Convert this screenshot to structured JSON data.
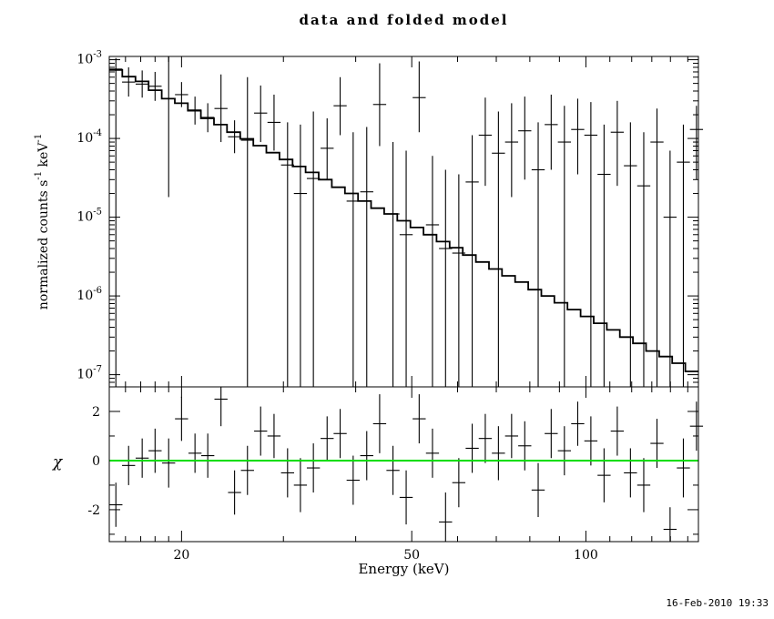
{
  "window": {
    "title": "data and folded model",
    "timestamp": "16-Feb-2010 19:33"
  },
  "chart_data": {
    "type": "line",
    "title": "data and folded model",
    "xlabel": "Energy (keV)",
    "ylabel_top": "normalized counts s^-1 keV^-1",
    "ylabel_bottom": "χ",
    "x_scale": "log",
    "y_scale_top": "log",
    "y_scale_bottom": "linear",
    "grid": false,
    "legend": false,
    "xlim": [
      15.0,
      156.5
    ],
    "ylim_top": [
      7e-08,
      0.0011
    ],
    "ylim_bottom": [
      -3.3,
      3.0
    ],
    "x_ticks": [
      {
        "v": 20,
        "label": "20"
      },
      {
        "v": 50,
        "label": "50"
      },
      {
        "v": 100,
        "label": "100"
      }
    ],
    "x_minor_ticks": [
      16,
      17,
      18,
      19,
      30,
      40,
      60,
      70,
      80,
      90,
      110,
      120,
      130,
      140,
      150
    ],
    "y_ticks_top": [
      {
        "v": 0.001,
        "label": "10^-3"
      },
      {
        "v": 0.0001,
        "label": "10^-4"
      },
      {
        "v": 1e-05,
        "label": "10^-5"
      },
      {
        "v": 1e-06,
        "label": "10^-6"
      },
      {
        "v": 1e-07,
        "label": "10^-7"
      }
    ],
    "y_ticks_bottom": [
      {
        "v": 2,
        "label": "2"
      },
      {
        "v": 0,
        "label": "0"
      },
      {
        "v": -2,
        "label": "-2"
      }
    ],
    "chi_minor_ticks": [
      -3,
      -1,
      1,
      3
    ],
    "model_color": "#000000",
    "data_color": "#000000",
    "zero_line_color": "#00dd00",
    "bin_half_ratio": 1.0264,
    "model": {
      "description": "folded model, stepped histogram (power-law like)",
      "edges": [
        15.0,
        15.8,
        16.65,
        17.54,
        18.48,
        19.47,
        20.51,
        21.6,
        22.76,
        23.97,
        25.26,
        26.61,
        28.03,
        29.53,
        31.11,
        32.77,
        34.53,
        36.37,
        38.32,
        40.37,
        42.53,
        44.81,
        47.2,
        49.73,
        52.39,
        55.19,
        58.14,
        61.25,
        64.53,
        67.99,
        71.62,
        75.45,
        79.49,
        83.74,
        88.22,
        92.94,
        97.91,
        103.15,
        108.67,
        114.48,
        120.6,
        127.05,
        133.85,
        141.01,
        148.55,
        156.5
      ],
      "values": [
        0.00074,
        0.00061,
        0.00053,
        0.00041,
        0.00032,
        0.00028,
        0.000225,
        0.00018,
        0.00015,
        0.00012,
        9.9e-05,
        8.1e-05,
        6.6e-05,
        5.4e-05,
        4.4e-05,
        3.7e-05,
        3e-05,
        2.4e-05,
        2e-05,
        1.6e-05,
        1.3e-05,
        1.1e-05,
        9e-06,
        7.4e-06,
        6e-06,
        4.9e-06,
        4.1e-06,
        3.3e-06,
        2.7e-06,
        2.2e-06,
        1.8e-06,
        1.5e-06,
        1.2e-06,
        1e-06,
        8.2e-07,
        6.7e-07,
        5.5e-07,
        4.5e-07,
        3.7e-07,
        3e-07,
        2.5e-07,
        2e-07,
        1.7e-07,
        1.4e-07,
        1.1e-07
      ]
    },
    "points_format": [
      "e_keV",
      "y",
      "y_lo",
      "y_hi",
      "chi",
      "chi_err"
    ],
    "points": [
      [
        15.4,
        0.00076,
        2e-08,
        0.00105,
        -1.8,
        0.9
      ],
      [
        16.2,
        0.00052,
        0.00034,
        0.0008,
        -0.2,
        0.8
      ],
      [
        17.1,
        0.00049,
        0.00033,
        0.00073,
        0.1,
        0.8
      ],
      [
        18.0,
        0.00046,
        0.0003,
        0.0007,
        0.4,
        0.9
      ],
      [
        19.0,
        0.00032,
        1.8e-05,
        0.0013,
        -0.1,
        1.0
      ],
      [
        20.0,
        0.00036,
        0.00025,
        0.00052,
        1.7,
        0.9
      ],
      [
        21.1,
        0.00023,
        0.00015,
        0.00034,
        0.3,
        0.8
      ],
      [
        22.2,
        0.000185,
        0.00012,
        0.00028,
        0.2,
        0.9
      ],
      [
        23.4,
        0.00024,
        9e-05,
        0.00065,
        2.5,
        1.1
      ],
      [
        24.7,
        0.000105,
        6.5e-05,
        0.00017,
        -1.3,
        0.9
      ],
      [
        26.0,
        9.5e-05,
        2e-08,
        0.0006,
        -0.4,
        1.0
      ],
      [
        27.4,
        0.00021,
        9e-05,
        0.00047,
        1.2,
        1.0
      ],
      [
        28.9,
        0.00016,
        7e-05,
        0.00036,
        1.0,
        0.9
      ],
      [
        30.5,
        4.6e-05,
        2e-08,
        0.00016,
        -0.5,
        1.0
      ],
      [
        32.1,
        2e-05,
        2e-08,
        0.00015,
        -1.0,
        1.1
      ],
      [
        33.8,
        3.1e-05,
        2e-08,
        0.00022,
        -0.3,
        1.0
      ],
      [
        35.7,
        7.5e-05,
        3e-05,
        0.00018,
        0.9,
        0.9
      ],
      [
        37.6,
        0.00026,
        0.00011,
        0.0006,
        1.1,
        1.0
      ],
      [
        39.6,
        1.6e-05,
        2e-08,
        0.00012,
        -0.8,
        1.0
      ],
      [
        41.8,
        2.1e-05,
        2e-08,
        0.00014,
        0.2,
        1.0
      ],
      [
        44.0,
        0.00027,
        8e-05,
        0.0009,
        1.5,
        1.2
      ],
      [
        46.4,
        1.1e-05,
        2e-08,
        9e-05,
        -0.4,
        1.0
      ],
      [
        48.9,
        6e-06,
        2e-08,
        7e-05,
        -1.5,
        1.1
      ],
      [
        51.5,
        0.00033,
        0.00012,
        0.00095,
        1.7,
        1.0
      ],
      [
        54.3,
        8e-06,
        2e-08,
        6e-05,
        0.3,
        1.0
      ],
      [
        57.2,
        4e-06,
        2e-08,
        4e-05,
        -2.5,
        1.2
      ],
      [
        60.3,
        3.5e-06,
        2e-08,
        3.5e-05,
        -0.9,
        1.0
      ],
      [
        63.6,
        2.8e-05,
        2e-08,
        0.00011,
        0.5,
        1.0
      ],
      [
        67.0,
        0.00011,
        2.5e-05,
        0.00033,
        0.9,
        1.0
      ],
      [
        70.6,
        6.5e-05,
        2e-08,
        0.00022,
        0.3,
        1.1
      ],
      [
        74.4,
        9e-05,
        1.8e-05,
        0.00028,
        1.0,
        0.9
      ],
      [
        78.4,
        0.000125,
        3e-05,
        0.00034,
        0.6,
        1.0
      ],
      [
        82.7,
        4e-05,
        2e-08,
        0.00016,
        -1.2,
        1.1
      ],
      [
        87.1,
        0.00015,
        4e-05,
        0.00036,
        1.1,
        1.0
      ],
      [
        91.8,
        9e-05,
        2e-08,
        0.00026,
        0.4,
        1.0
      ],
      [
        96.8,
        0.00013,
        3.5e-05,
        0.00032,
        1.5,
        0.9
      ],
      [
        102.0,
        0.00011,
        2e-08,
        0.00029,
        0.8,
        1.0
      ],
      [
        107.5,
        3.5e-05,
        2e-08,
        0.00015,
        -0.6,
        1.1
      ],
      [
        113.3,
        0.00012,
        2.5e-05,
        0.0003,
        1.2,
        1.0
      ],
      [
        119.4,
        4.5e-05,
        2e-08,
        0.00016,
        -0.5,
        1.0
      ],
      [
        125.9,
        2.5e-05,
        2e-08,
        0.00012,
        -1.0,
        1.1
      ],
      [
        132.7,
        9e-05,
        2e-08,
        0.00024,
        0.7,
        1.0
      ],
      [
        139.8,
        1e-05,
        2e-08,
        7e-05,
        -2.8,
        0.9
      ],
      [
        147.4,
        5e-05,
        2e-08,
        0.00015,
        -0.3,
        1.2
      ],
      [
        155.3,
        0.00013,
        3e-05,
        0.00026,
        1.4,
        1.0
      ]
    ]
  }
}
